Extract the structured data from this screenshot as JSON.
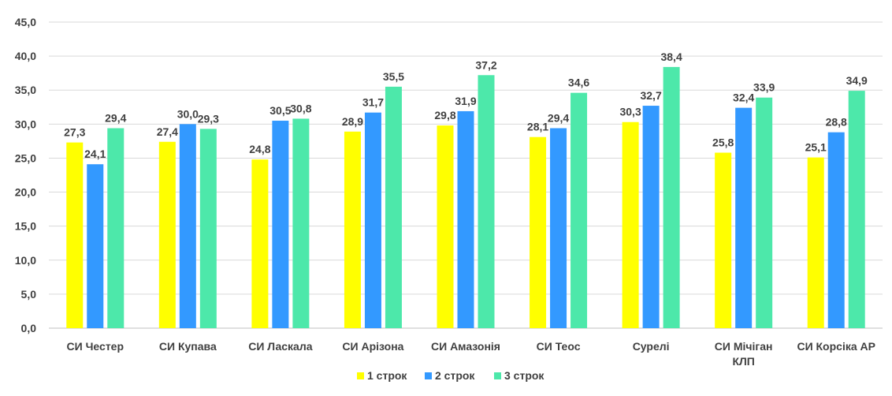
{
  "chart_data": {
    "type": "bar",
    "title": "",
    "xlabel": "",
    "ylabel": "",
    "ylim": [
      0,
      45
    ],
    "y_ticks": [
      "0,0",
      "5,0",
      "10,0",
      "15,0",
      "20,0",
      "25,0",
      "30,0",
      "35,0",
      "40,0",
      "45,0"
    ],
    "grid": true,
    "legend_position": "bottom",
    "categories": [
      [
        "СИ Честер"
      ],
      [
        "СИ Купава"
      ],
      [
        "СИ Ласкала"
      ],
      [
        "СИ Арізона"
      ],
      [
        "СИ Амазонія"
      ],
      [
        "СИ Теос"
      ],
      [
        "Сурелі"
      ],
      [
        "СИ Мічіган",
        "КЛП"
      ],
      [
        "СИ Корсіка АР"
      ]
    ],
    "series": [
      {
        "name": "1 строк",
        "color": "#ffff00",
        "values": [
          27.3,
          27.4,
          24.8,
          28.9,
          29.8,
          28.1,
          30.3,
          25.8,
          25.1
        ],
        "labels": [
          "27,3",
          "27,4",
          "24,8",
          "28,9",
          "29,8",
          "28,1",
          "30,3",
          "25,8",
          "25,1"
        ]
      },
      {
        "name": "2 строк",
        "color": "#3399ff",
        "values": [
          24.1,
          30.0,
          30.5,
          31.7,
          31.9,
          29.4,
          32.7,
          32.4,
          28.8
        ],
        "labels": [
          "24,1",
          "30,0",
          "30,5",
          "31,7",
          "31,9",
          "29,4",
          "32,7",
          "32,4",
          "28,8"
        ]
      },
      {
        "name": "3 строк",
        "color": "#4de8aa",
        "values": [
          29.4,
          29.3,
          30.8,
          35.5,
          37.2,
          34.6,
          38.4,
          33.9,
          34.9
        ],
        "labels": [
          "29,4",
          "29,3",
          "30,8",
          "35,5",
          "37,2",
          "34,6",
          "38,4",
          "33,9",
          "34,9"
        ]
      }
    ]
  }
}
